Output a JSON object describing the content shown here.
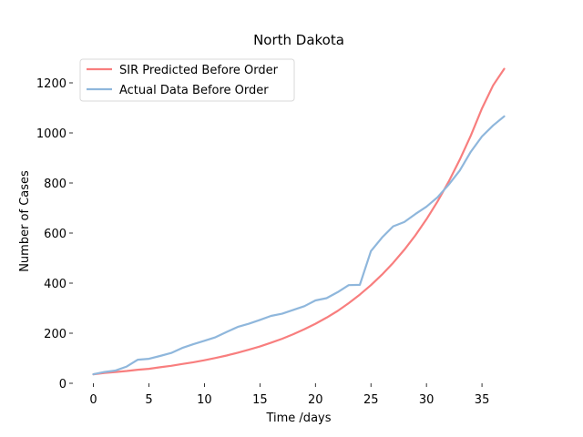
{
  "chart_data": {
    "type": "line",
    "title": "North Dakota",
    "xlabel": "Time /days",
    "ylabel": "Number of Cases",
    "xlim": [
      -1.85,
      38.85
    ],
    "ylim": [
      0,
      1320
    ],
    "x_ticks": [
      0,
      5,
      10,
      15,
      20,
      25,
      30,
      35
    ],
    "y_ticks": [
      0,
      200,
      400,
      600,
      800,
      1000,
      1200
    ],
    "grid": false,
    "legend_position": "top-left",
    "x": [
      0,
      1,
      2,
      3,
      4,
      5,
      6,
      7,
      8,
      9,
      10,
      11,
      12,
      13,
      14,
      15,
      16,
      17,
      18,
      19,
      20,
      21,
      22,
      23,
      24,
      25,
      26,
      27,
      28,
      29,
      30,
      31,
      32,
      33,
      34,
      35,
      36,
      37
    ],
    "series": [
      {
        "name": "SIR Predicted Before Order",
        "color": "#f87e7e",
        "values": [
          36,
          41,
          45,
          49,
          54,
          58,
          64,
          70,
          77,
          84,
          92,
          101,
          111,
          122,
          134,
          147,
          162,
          178,
          196,
          216,
          238,
          262,
          289,
          320,
          354,
          392,
          434,
          481,
          533,
          591,
          655,
          726,
          805,
          893,
          990,
          1098,
          1190,
          1256
        ]
      },
      {
        "name": "Actual Data Before Order",
        "color": "#8fb7dc",
        "values": [
          36,
          45,
          51,
          67,
          94,
          98,
          109,
          121,
          141,
          156,
          170,
          184,
          205,
          225,
          238,
          253,
          269,
          278,
          293,
          308,
          331,
          340,
          364,
          392,
          393,
          528,
          582,
          627,
          644,
          676,
          705,
          743,
          793,
          850,
          925,
          986,
          1030,
          1066
        ]
      }
    ]
  }
}
